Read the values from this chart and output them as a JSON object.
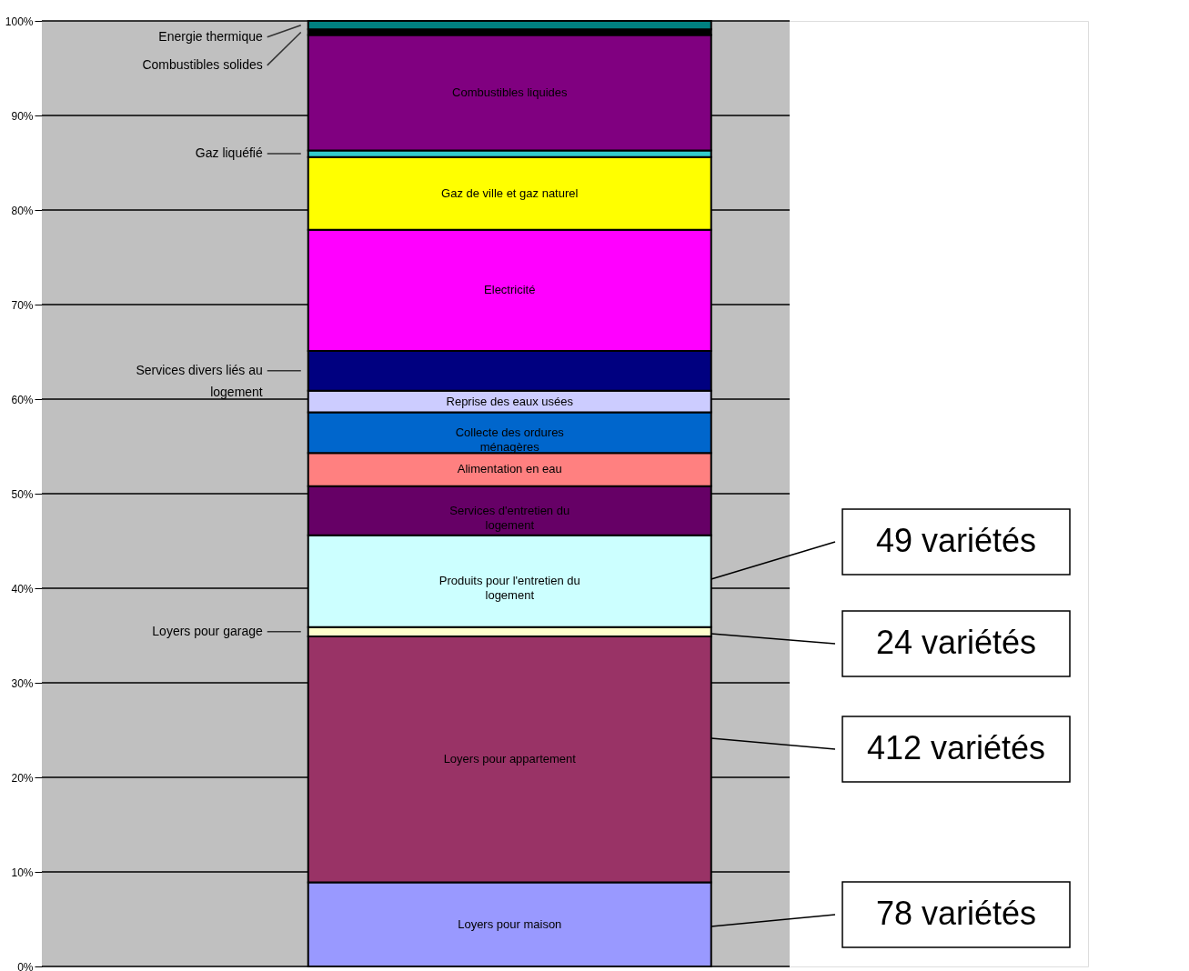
{
  "chart_data": {
    "type": "bar",
    "stacked": true,
    "categories": [
      null
    ],
    "series": [
      {
        "name": "Loyers pour maison",
        "color": "#9999ff",
        "values": [
          8.9
        ]
      },
      {
        "name": "Loyers  pour appartement",
        "color": "#993366",
        "values": [
          26.0
        ]
      },
      {
        "name": "Loyers pour garage",
        "color": "#ffffcc",
        "values": [
          1.0
        ]
      },
      {
        "name": "Produits pour l'entretien du logement",
        "color": "#ccffff",
        "values": [
          9.7
        ]
      },
      {
        "name": "Services d'entretien du logement",
        "color": "#660066",
        "values": [
          5.2
        ]
      },
      {
        "name": "Alimentation en eau",
        "color": "#ff8080",
        "values": [
          3.5
        ]
      },
      {
        "name": "Collecte des ordures ménagères",
        "color": "#0066cc",
        "values": [
          4.3
        ]
      },
      {
        "name": "Reprise des eaux usées",
        "color": "#ccccff",
        "values": [
          2.3
        ]
      },
      {
        "name": "Services divers liés au logement",
        "color": "#000080",
        "values": [
          4.2
        ]
      },
      {
        "name": "Electricité",
        "color": "#ff00ff",
        "values": [
          12.8
        ]
      },
      {
        "name": "Gaz de ville et gaz naturel",
        "color": "#ffff00",
        "values": [
          7.7
        ]
      },
      {
        "name": "Gaz liquéfié",
        "color": "#33cccc",
        "values": [
          0.7
        ]
      },
      {
        "name": "Combustibles liquides",
        "color": "#800080",
        "values": [
          12.2
        ]
      },
      {
        "name": "Combustibles solides",
        "color": "#000000",
        "values": [
          0.6
        ]
      },
      {
        "name": "Energie thermique",
        "color": "#008080",
        "values": [
          0.9
        ]
      }
    ],
    "ylim": [
      0,
      100
    ],
    "yticks": [
      {
        "value": 0,
        "label": "0%"
      },
      {
        "value": 10,
        "label": "10%"
      },
      {
        "value": 20,
        "label": "20%"
      },
      {
        "value": 30,
        "label": "30%"
      },
      {
        "value": 40,
        "label": "40%"
      },
      {
        "value": 50,
        "label": "50%"
      },
      {
        "value": 60,
        "label": "60%"
      },
      {
        "value": 70,
        "label": "70%"
      },
      {
        "value": 80,
        "label": "80%"
      },
      {
        "value": 90,
        "label": "90%"
      },
      {
        "value": 100,
        "label": "100%"
      }
    ],
    "grid": "y",
    "annotations": [
      "49 variétés",
      "24 variétés",
      "412 variétés",
      "78 variétés"
    ]
  }
}
